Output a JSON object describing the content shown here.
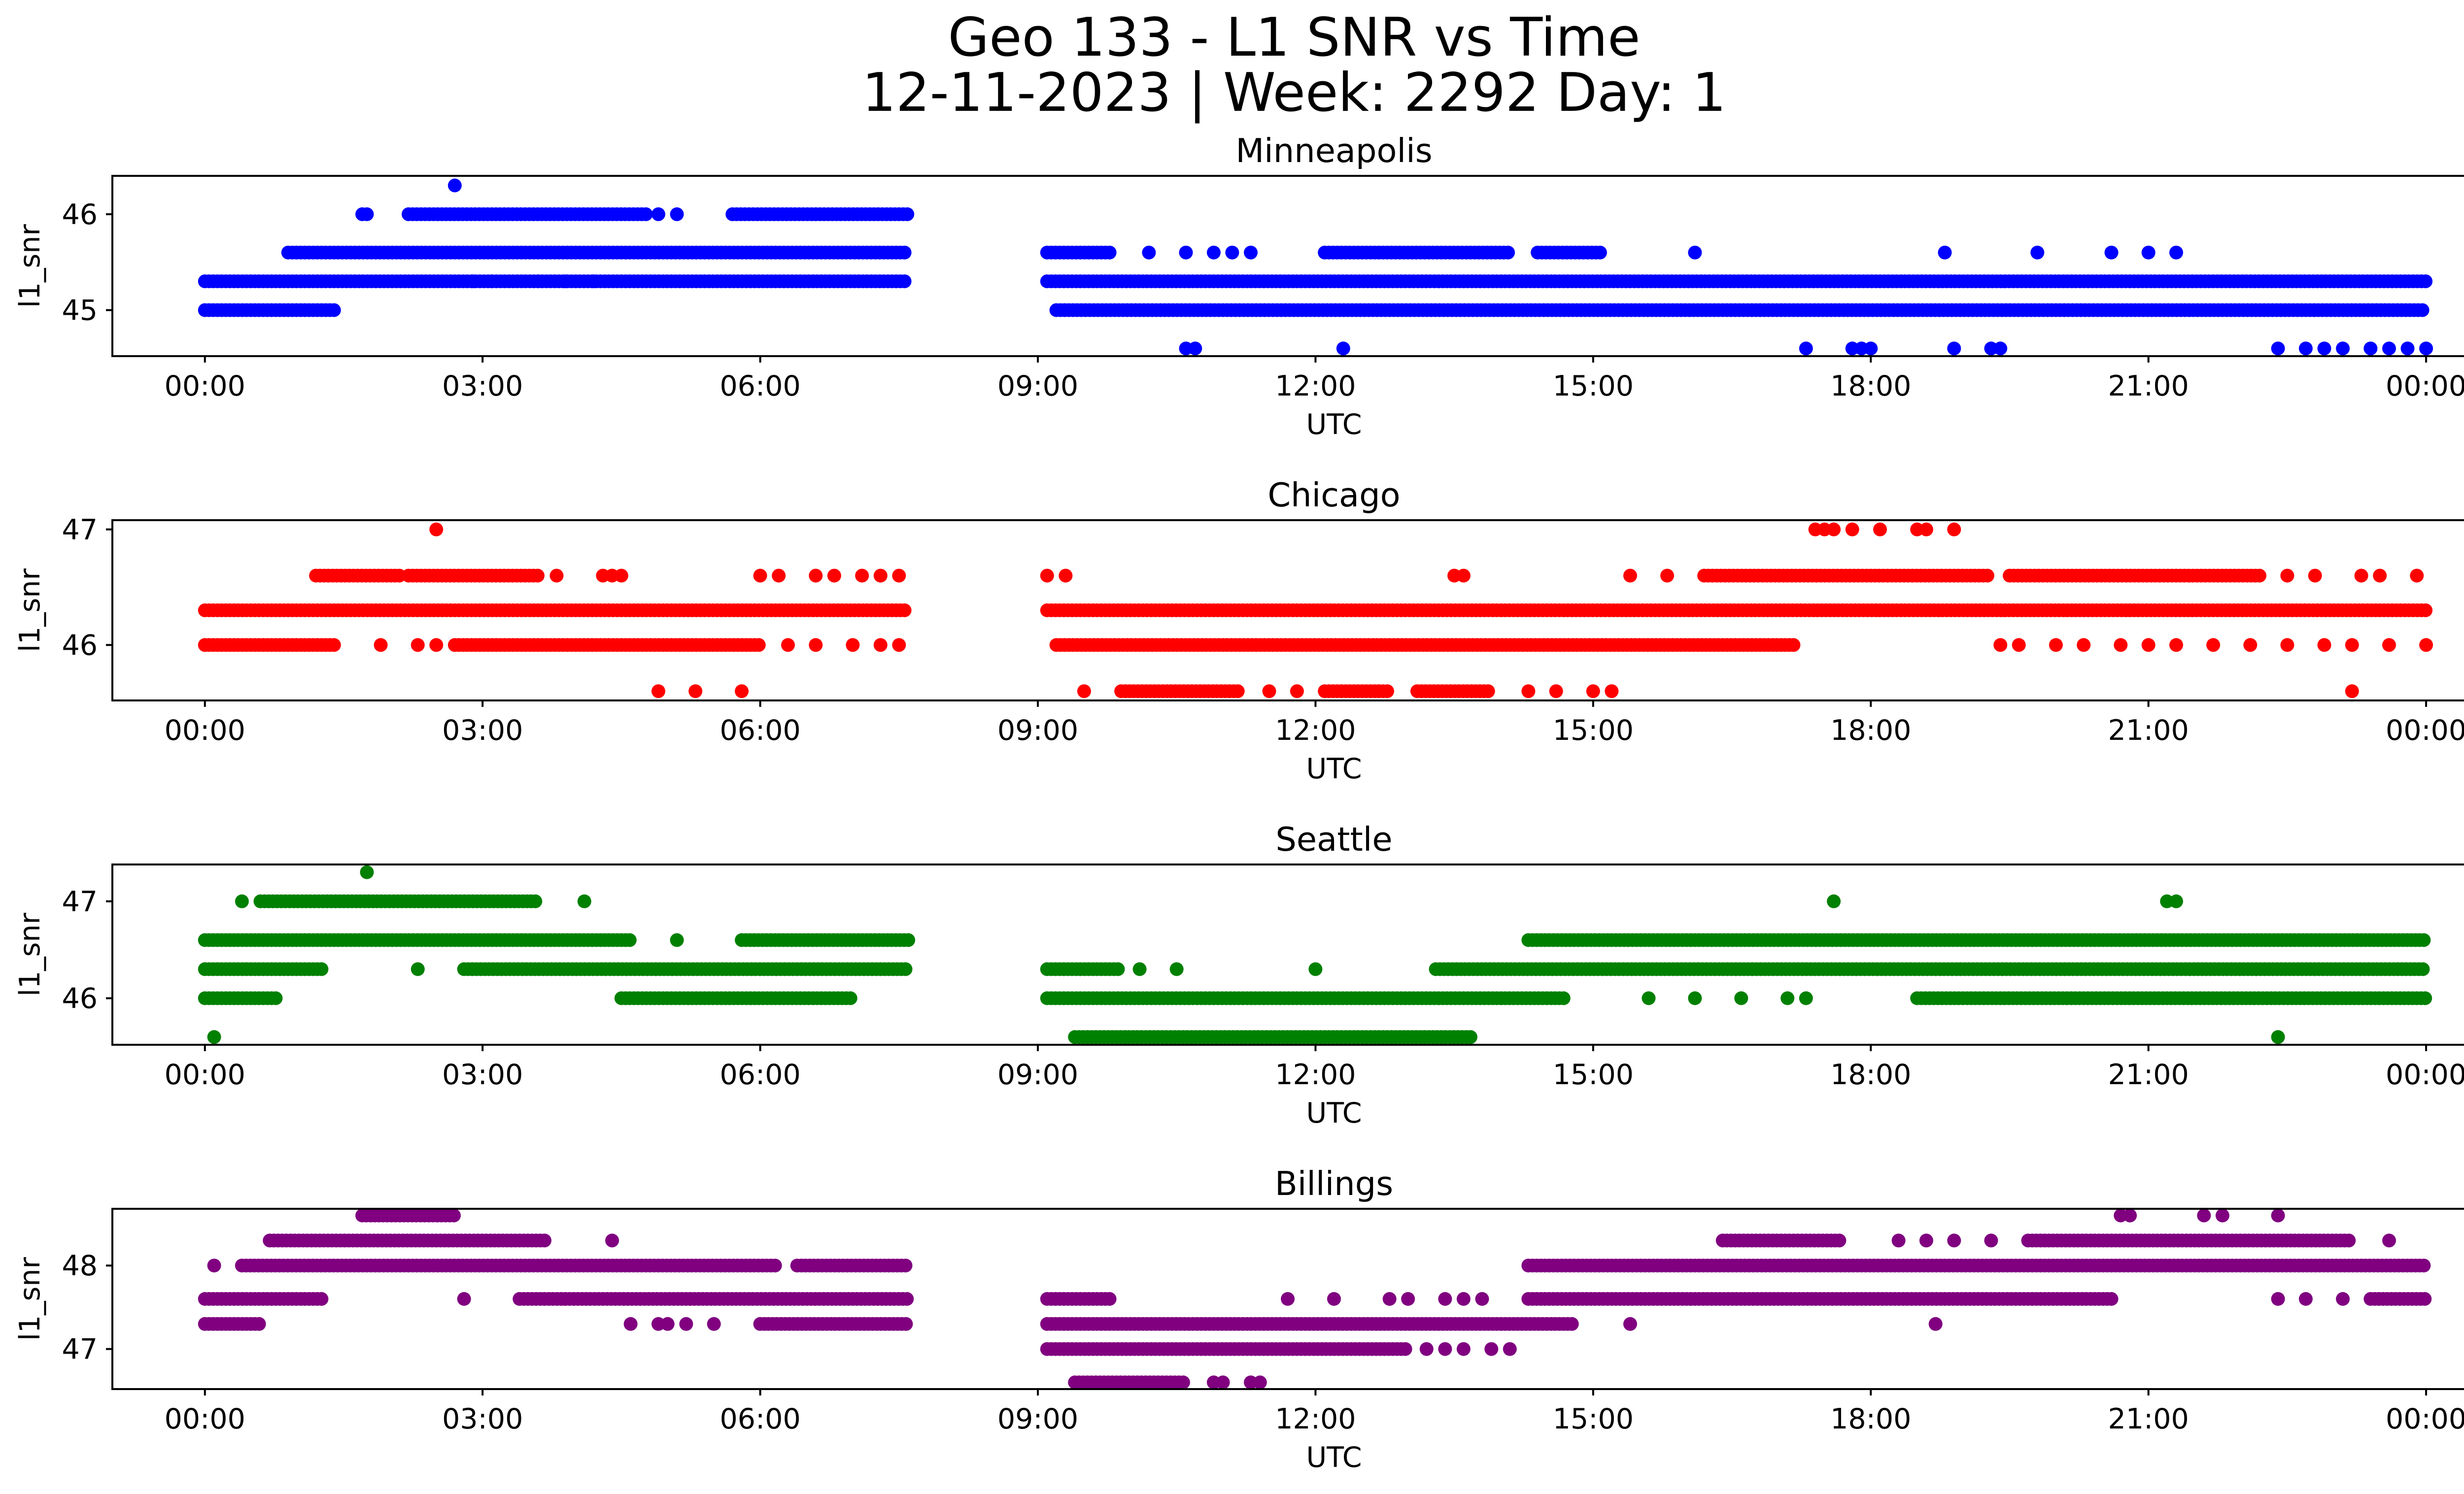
{
  "figure": {
    "title_line1": "Geo 133 - L1 SNR vs Time",
    "title_line2": "12-11-2023 | Week: 2292 Day: 1"
  },
  "chart_data": [
    {
      "type": "scatter",
      "title": "Minneapolis",
      "color": "#0000ff",
      "xlabel": "UTC",
      "ylabel": "l1_snr",
      "grid": false,
      "x_unit": "hours (UTC)",
      "xlim": [
        -1.0,
        25.4
      ],
      "ylim": [
        44.52,
        46.4
      ],
      "x_ticks": [
        "00:00",
        "03:00",
        "06:00",
        "09:00",
        "12:00",
        "15:00",
        "18:00",
        "21:00",
        "00:00"
      ],
      "y_ticks": [
        45,
        46
      ],
      "y_tick_labels": [
        "45",
        "46"
      ],
      "runs": [
        [
          45.0,
          0.0,
          1.4
        ],
        [
          45.3,
          0.0,
          7.6
        ],
        [
          45.6,
          0.9,
          7.6
        ],
        [
          46.0,
          2.2,
          4.8
        ],
        [
          46.0,
          5.7,
          7.6
        ],
        [
          45.0,
          9.2,
          24.0
        ],
        [
          45.3,
          9.1,
          24.0
        ],
        [
          45.6,
          9.1,
          9.8
        ],
        [
          45.6,
          12.1,
          14.1
        ],
        [
          45.6,
          14.4,
          15.1
        ]
      ],
      "points": [
        [
          1.7,
          46.0
        ],
        [
          1.75,
          46.0
        ],
        [
          2.7,
          46.3
        ],
        [
          4.9,
          46.0
        ],
        [
          5.1,
          46.0
        ],
        [
          2.9,
          45.3
        ],
        [
          3.1,
          45.3
        ],
        [
          3.6,
          45.3
        ],
        [
          3.9,
          45.3
        ],
        [
          4.2,
          45.3
        ],
        [
          10.2,
          45.6
        ],
        [
          10.6,
          45.6
        ],
        [
          10.9,
          45.6
        ],
        [
          11.1,
          45.6
        ],
        [
          11.3,
          45.6
        ],
        [
          16.1,
          45.6
        ],
        [
          18.8,
          45.6
        ],
        [
          19.8,
          45.6
        ],
        [
          20.6,
          45.6
        ],
        [
          21.0,
          45.6
        ],
        [
          21.3,
          45.6
        ],
        [
          10.6,
          44.6
        ],
        [
          10.7,
          44.6
        ],
        [
          12.3,
          44.6
        ],
        [
          17.3,
          44.6
        ],
        [
          17.8,
          44.6
        ],
        [
          17.9,
          44.6
        ],
        [
          18.0,
          44.6
        ],
        [
          18.9,
          44.6
        ],
        [
          19.3,
          44.6
        ],
        [
          19.4,
          44.6
        ],
        [
          22.4,
          44.6
        ],
        [
          22.7,
          44.6
        ],
        [
          22.9,
          44.6
        ],
        [
          23.1,
          44.6
        ],
        [
          23.4,
          44.6
        ],
        [
          23.6,
          44.6
        ],
        [
          23.8,
          44.6
        ],
        [
          24.0,
          44.6
        ]
      ]
    },
    {
      "type": "scatter",
      "title": "Chicago",
      "color": "#ff0000",
      "xlabel": "UTC",
      "ylabel": "l1_snr",
      "grid": false,
      "x_unit": "hours (UTC)",
      "xlim": [
        -1.0,
        25.4
      ],
      "ylim": [
        45.52,
        47.08
      ],
      "x_ticks": [
        "00:00",
        "03:00",
        "06:00",
        "09:00",
        "12:00",
        "15:00",
        "18:00",
        "21:00",
        "00:00"
      ],
      "y_ticks": [
        46,
        47
      ],
      "y_tick_labels": [
        "46",
        "47"
      ],
      "runs": [
        [
          46.3,
          0.0,
          7.6
        ],
        [
          46.3,
          9.1,
          24.0
        ],
        [
          46.0,
          0.0,
          1.4
        ],
        [
          46.0,
          2.7,
          6.0
        ],
        [
          46.0,
          9.2,
          17.2
        ],
        [
          46.6,
          1.2,
          2.1
        ],
        [
          46.6,
          2.2,
          3.6
        ],
        [
          46.6,
          16.2,
          19.3
        ],
        [
          46.6,
          19.5,
          22.2
        ],
        [
          45.6,
          9.9,
          11.2
        ],
        [
          45.6,
          12.1,
          12.8
        ],
        [
          45.6,
          13.1,
          13.9
        ]
      ],
      "points": [
        [
          2.5,
          47.0
        ],
        [
          17.4,
          47.0
        ],
        [
          17.5,
          47.0
        ],
        [
          17.6,
          47.0
        ],
        [
          17.8,
          47.0
        ],
        [
          18.1,
          47.0
        ],
        [
          18.5,
          47.0
        ],
        [
          18.6,
          47.0
        ],
        [
          18.9,
          47.0
        ],
        [
          3.8,
          46.6
        ],
        [
          4.3,
          46.6
        ],
        [
          4.4,
          46.6
        ],
        [
          4.5,
          46.6
        ],
        [
          6.0,
          46.6
        ],
        [
          6.2,
          46.6
        ],
        [
          6.6,
          46.6
        ],
        [
          6.8,
          46.6
        ],
        [
          7.1,
          46.6
        ],
        [
          7.3,
          46.6
        ],
        [
          7.5,
          46.6
        ],
        [
          9.1,
          46.6
        ],
        [
          9.3,
          46.6
        ],
        [
          13.5,
          46.6
        ],
        [
          13.6,
          46.6
        ],
        [
          15.4,
          46.6
        ],
        [
          15.8,
          46.6
        ],
        [
          22.5,
          46.6
        ],
        [
          22.8,
          46.6
        ],
        [
          23.3,
          46.6
        ],
        [
          23.5,
          46.6
        ],
        [
          23.9,
          46.6
        ],
        [
          1.9,
          46.0
        ],
        [
          2.3,
          46.0
        ],
        [
          2.5,
          46.0
        ],
        [
          6.3,
          46.0
        ],
        [
          6.6,
          46.0
        ],
        [
          7.0,
          46.0
        ],
        [
          7.3,
          46.0
        ],
        [
          7.5,
          46.0
        ],
        [
          19.4,
          46.0
        ],
        [
          19.6,
          46.0
        ],
        [
          20.0,
          46.0
        ],
        [
          20.3,
          46.0
        ],
        [
          20.7,
          46.0
        ],
        [
          21.0,
          46.0
        ],
        [
          21.3,
          46.0
        ],
        [
          21.7,
          46.0
        ],
        [
          22.1,
          46.0
        ],
        [
          22.5,
          46.0
        ],
        [
          22.9,
          46.0
        ],
        [
          23.2,
          46.0
        ],
        [
          23.6,
          46.0
        ],
        [
          24.0,
          46.0
        ],
        [
          4.9,
          45.6
        ],
        [
          5.3,
          45.6
        ],
        [
          5.8,
          45.6
        ],
        [
          9.5,
          45.6
        ],
        [
          11.5,
          45.6
        ],
        [
          11.8,
          45.6
        ],
        [
          14.3,
          45.6
        ],
        [
          14.6,
          45.6
        ],
        [
          15.0,
          45.6
        ],
        [
          15.2,
          45.6
        ],
        [
          23.2,
          45.6
        ]
      ]
    },
    {
      "type": "scatter",
      "title": "Seattle",
      "color": "#008000",
      "xlabel": "UTC",
      "ylabel": "l1_snr",
      "grid": false,
      "x_unit": "hours (UTC)",
      "xlim": [
        -1.0,
        25.4
      ],
      "ylim": [
        45.52,
        47.38
      ],
      "x_ticks": [
        "00:00",
        "03:00",
        "06:00",
        "09:00",
        "12:00",
        "15:00",
        "18:00",
        "21:00",
        "00:00"
      ],
      "y_ticks": [
        46,
        47
      ],
      "y_tick_labels": [
        "46",
        "47"
      ],
      "runs": [
        [
          46.6,
          0.0,
          4.6
        ],
        [
          46.6,
          5.8,
          7.6
        ],
        [
          46.6,
          14.3,
          24.0
        ],
        [
          46.3,
          0.0,
          1.3
        ],
        [
          46.3,
          2.8,
          7.6
        ],
        [
          46.3,
          9.1,
          9.9
        ],
        [
          46.3,
          13.3,
          24.0
        ],
        [
          46.0,
          0.0,
          0.8
        ],
        [
          46.0,
          4.5,
          7.0
        ],
        [
          46.0,
          9.1,
          14.7
        ],
        [
          46.0,
          18.5,
          24.0
        ],
        [
          47.0,
          0.6,
          3.6
        ],
        [
          45.6,
          9.4,
          13.7
        ]
      ],
      "points": [
        [
          0.1,
          45.6
        ],
        [
          1.75,
          47.3
        ],
        [
          4.1,
          47.0
        ],
        [
          17.6,
          47.0
        ],
        [
          21.2,
          47.0
        ],
        [
          21.3,
          47.0
        ],
        [
          2.3,
          46.3
        ],
        [
          10.1,
          46.3
        ],
        [
          10.5,
          46.3
        ],
        [
          12.0,
          46.3
        ],
        [
          15.6,
          46.0
        ],
        [
          16.1,
          46.0
        ],
        [
          16.6,
          46.0
        ],
        [
          17.1,
          46.0
        ],
        [
          17.3,
          46.0
        ],
        [
          22.4,
          45.6
        ],
        [
          5.1,
          46.6
        ],
        [
          0.4,
          47.0
        ]
      ]
    },
    {
      "type": "scatter",
      "title": "Billings",
      "color": "#800080",
      "xlabel": "UTC",
      "ylabel": "l1_snr",
      "grid": false,
      "x_unit": "hours (UTC)",
      "xlim": [
        -1.0,
        25.4
      ],
      "ylim": [
        46.52,
        48.68
      ],
      "x_ticks": [
        "00:00",
        "03:00",
        "06:00",
        "09:00",
        "12:00",
        "15:00",
        "18:00",
        "21:00",
        "00:00"
      ],
      "y_ticks": [
        47,
        48
      ],
      "y_tick_labels": [
        "47",
        "48"
      ],
      "runs": [
        [
          47.6,
          0.0,
          1.3
        ],
        [
          47.6,
          3.4,
          7.6
        ],
        [
          47.6,
          9.1,
          9.8
        ],
        [
          47.6,
          14.3,
          20.6
        ],
        [
          47.6,
          23.4,
          24.0
        ],
        [
          47.3,
          0.0,
          0.6
        ],
        [
          47.3,
          9.1,
          14.8
        ],
        [
          47.3,
          6.0,
          7.6
        ],
        [
          47.0,
          9.1,
          13.0
        ],
        [
          48.0,
          0.4,
          6.2
        ],
        [
          48.0,
          6.4,
          7.6
        ],
        [
          48.0,
          14.3,
          24.0
        ],
        [
          48.3,
          0.7,
          3.7
        ],
        [
          48.3,
          16.4,
          17.7
        ],
        [
          48.3,
          19.7,
          23.2
        ],
        [
          48.6,
          1.7,
          2.7
        ],
        [
          46.6,
          9.4,
          10.6
        ]
      ],
      "points": [
        [
          0.1,
          48.0
        ],
        [
          2.8,
          47.6
        ],
        [
          4.4,
          48.3
        ],
        [
          4.6,
          47.3
        ],
        [
          4.9,
          47.3
        ],
        [
          5.0,
          47.3
        ],
        [
          5.2,
          47.3
        ],
        [
          5.5,
          47.3
        ],
        [
          11.7,
          47.6
        ],
        [
          12.2,
          47.6
        ],
        [
          12.8,
          47.6
        ],
        [
          13.0,
          47.6
        ],
        [
          13.4,
          47.6
        ],
        [
          13.6,
          47.6
        ],
        [
          13.8,
          47.6
        ],
        [
          13.2,
          47.0
        ],
        [
          13.4,
          47.0
        ],
        [
          13.6,
          47.0
        ],
        [
          13.9,
          47.0
        ],
        [
          14.1,
          47.0
        ],
        [
          10.9,
          46.6
        ],
        [
          11.0,
          46.6
        ],
        [
          11.3,
          46.6
        ],
        [
          11.4,
          46.6
        ],
        [
          15.4,
          47.3
        ],
        [
          18.7,
          47.3
        ],
        [
          18.3,
          48.3
        ],
        [
          18.6,
          48.3
        ],
        [
          18.9,
          48.3
        ],
        [
          19.3,
          48.3
        ],
        [
          20.7,
          48.6
        ],
        [
          20.8,
          48.6
        ],
        [
          21.6,
          48.6
        ],
        [
          21.8,
          48.6
        ],
        [
          22.4,
          48.6
        ],
        [
          23.6,
          48.3
        ],
        [
          22.4,
          47.6
        ],
        [
          22.7,
          47.6
        ],
        [
          23.1,
          47.6
        ]
      ]
    }
  ]
}
